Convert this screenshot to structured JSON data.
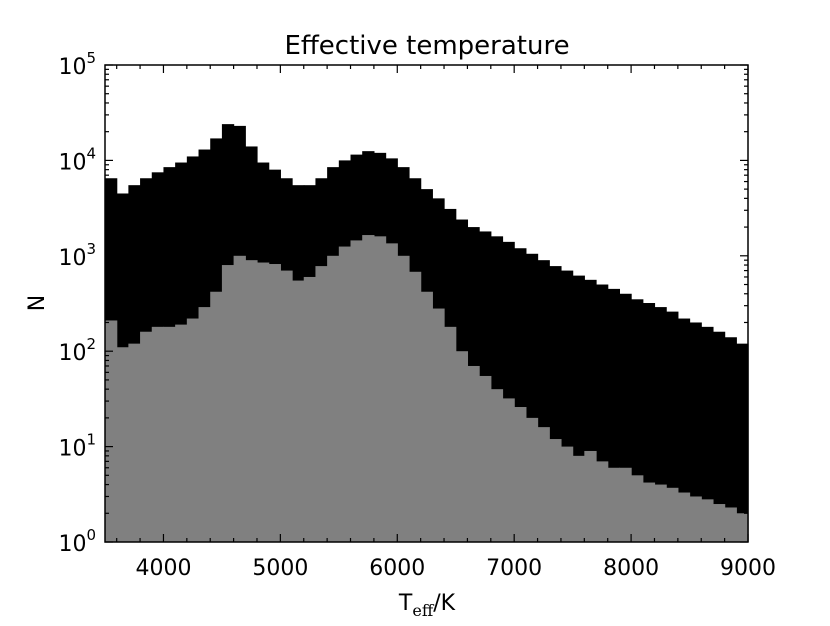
{
  "chart_data": {
    "type": "bar",
    "subtype": "histogram",
    "title": "Effective temperature",
    "xlabel": {
      "main": "T",
      "sub": "eff",
      "unit": "/K"
    },
    "ylabel": "N",
    "y_scale": "log",
    "xlim": [
      3500,
      9000
    ],
    "ylim": [
      1,
      100000
    ],
    "x_ticks": [
      "4000",
      "5000",
      "6000",
      "7000",
      "8000",
      "9000"
    ],
    "y_ticks": [
      {
        "base": "10",
        "exp": "0"
      },
      {
        "base": "10",
        "exp": "1"
      },
      {
        "base": "10",
        "exp": "2"
      },
      {
        "base": "10",
        "exp": "3"
      },
      {
        "base": "10",
        "exp": "4"
      },
      {
        "base": "10",
        "exp": "5"
      }
    ],
    "bin_width": 100,
    "bin_start": 3500,
    "series": [
      {
        "color": "#000000",
        "values": [
          6500,
          4500,
          5500,
          6500,
          7500,
          8500,
          9500,
          11000,
          13000,
          17000,
          24000,
          23000,
          14000,
          9500,
          8000,
          6500,
          5500,
          5500,
          6500,
          8500,
          10000,
          11500,
          12500,
          12000,
          10500,
          8500,
          6500,
          5000,
          4000,
          3100,
          2400,
          2000,
          1800,
          1600,
          1400,
          1200,
          1050,
          900,
          780,
          700,
          620,
          560,
          500,
          450,
          400,
          350,
          320,
          290,
          260,
          220,
          200,
          180,
          160,
          140,
          120
        ]
      },
      {
        "color": "#808080",
        "values": [
          210,
          110,
          120,
          160,
          180,
          180,
          190,
          220,
          290,
          420,
          800,
          1000,
          900,
          850,
          820,
          700,
          550,
          600,
          780,
          1000,
          1250,
          1450,
          1650,
          1600,
          1350,
          1000,
          680,
          420,
          280,
          180,
          100,
          70,
          55,
          40,
          32,
          26,
          20,
          16,
          12,
          10,
          8,
          9,
          7,
          6,
          6,
          5,
          4.2,
          4.0,
          3.7,
          3.3,
          3.0,
          2.8,
          2.5,
          2.3,
          2.0
        ]
      }
    ]
  }
}
